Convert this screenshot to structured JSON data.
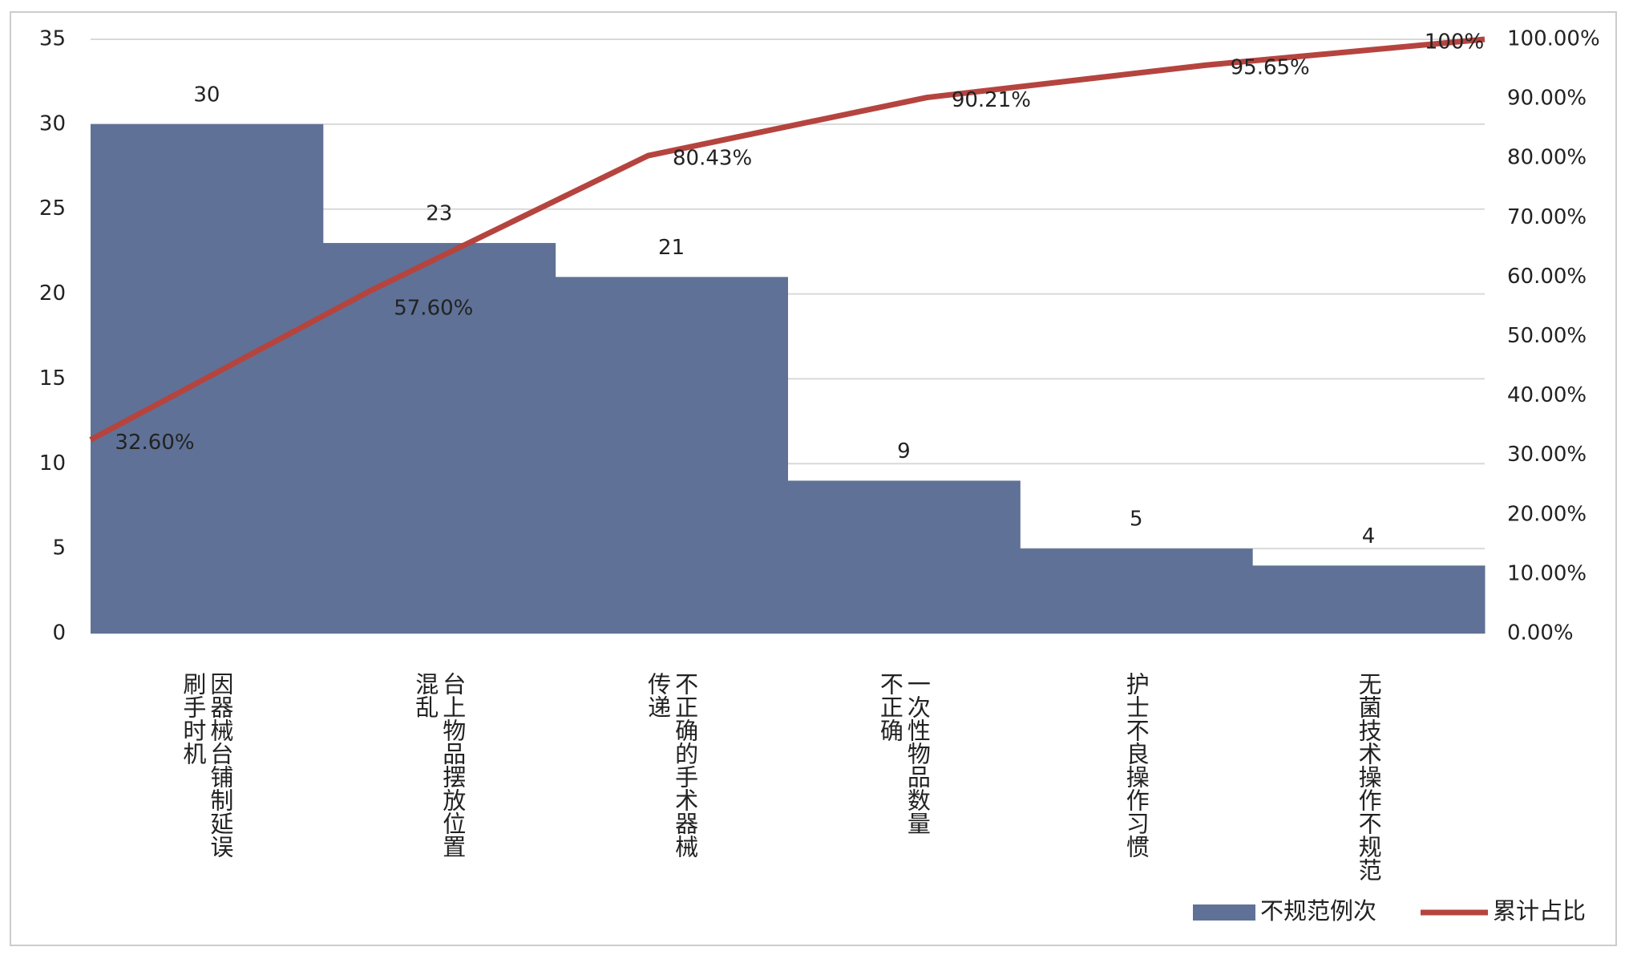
{
  "chart_data": {
    "type": "pareto",
    "categories": [
      "因器械台铺制延误\n刷手时机",
      "台上物品摆放位置\n混乱",
      "不正确的手术器械\n传递",
      "一次性物品数量\n不正确",
      "护士不良操作习惯",
      "无菌技术操作不规范"
    ],
    "series": [
      {
        "name": "不规范例次",
        "type": "bar",
        "color": "#5f7196",
        "values": [
          30,
          23,
          21,
          9,
          5,
          4
        ]
      },
      {
        "name": "累计占比",
        "type": "line",
        "axis": "y2",
        "color": "#b5443f",
        "values": [
          32.6,
          57.6,
          80.43,
          90.21,
          95.65,
          100
        ],
        "value_labels": [
          "32.60%",
          "57.60%",
          "80.43%",
          "90.21%",
          "95.65%",
          "100%"
        ]
      }
    ],
    "ylim": [
      0,
      35
    ],
    "yticks": [
      0,
      5,
      10,
      15,
      20,
      25,
      30,
      35
    ],
    "y2lim": [
      0,
      100
    ],
    "y2ticks": [
      {
        "value": 0,
        "label": "0.00%"
      },
      {
        "value": 10,
        "label": "10.00%"
      },
      {
        "value": 20,
        "label": "20.00%"
      },
      {
        "value": 30,
        "label": "30.00%"
      },
      {
        "value": 40,
        "label": "40.00%"
      },
      {
        "value": 50,
        "label": "50.00%"
      },
      {
        "value": 60,
        "label": "60.00%"
      },
      {
        "value": 70,
        "label": "70.00%"
      },
      {
        "value": 80,
        "label": "80.00%"
      },
      {
        "value": 90,
        "label": "90.00%"
      },
      {
        "value": 100,
        "label": "100.00%"
      }
    ],
    "grid": true,
    "legend": "bottom-right"
  }
}
